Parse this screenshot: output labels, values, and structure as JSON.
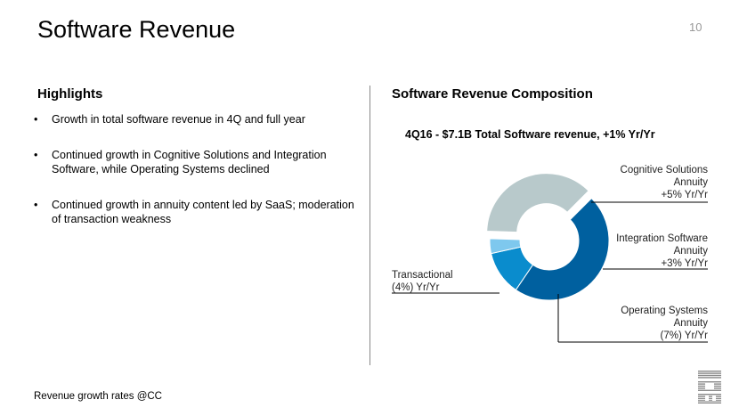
{
  "slide": {
    "title": "Software Revenue",
    "page_number": "10",
    "footer": "Revenue growth rates @CC"
  },
  "highlights": {
    "heading": "Highlights",
    "bullets": [
      "Growth in total software revenue in 4Q and full year",
      "Continued growth in Cognitive Solutions and Integration Software, while Operating Systems declined",
      "Continued growth in annuity content led by SaaS; moderation of transaction weakness"
    ]
  },
  "composition": {
    "heading": "Software Revenue Composition",
    "subtitle": "4Q16 - $7.1B Total Software revenue, +1% Yr/Yr"
  },
  "chart_data": {
    "type": "pie",
    "title": "4Q16 - $7.1B Total Software revenue, +1% Yr/Yr",
    "donut": true,
    "series": [
      {
        "name": "Cognitive Solutions Annuity",
        "label_lines": [
          "Cognitive Solutions",
          "Annuity",
          "+5% Yr/Yr"
        ],
        "share": 0.47,
        "color": "#00609f"
      },
      {
        "name": "Integration Software Annuity",
        "label_lines": [
          "Integration Software",
          "Annuity",
          "+3% Yr/Yr"
        ],
        "share": 0.12,
        "color": "#0a8ccd"
      },
      {
        "name": "Operating Systems Annuity",
        "label_lines": [
          "Operating Systems",
          "Annuity",
          "(7%) Yr/Yr"
        ],
        "share": 0.04,
        "color": "#7ec8ee"
      },
      {
        "name": "Transactional",
        "label_lines": [
          "Transactional",
          "(4%) Yr/Yr"
        ],
        "share": 0.37,
        "color": "#b8c9cb",
        "exploded": true
      }
    ]
  },
  "colors": {
    "logo": "#8a8a8a",
    "leader_line": "#000000"
  },
  "icons": {
    "brand_logo": "ibm-logo-icon"
  }
}
